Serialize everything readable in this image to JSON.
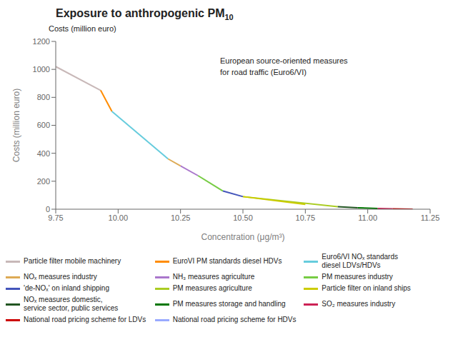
{
  "chart_data": {
    "type": "line",
    "title": "Exposure to anthropogenic PM",
    "subtitle": "10",
    "xlabel": "Concentration (μg/m³)",
    "ylabel": "Costs (million euro)",
    "annotations": [
      "Costs (million euro)",
      "European source-oriented measures\nfor road traffic (Euro6/VI)"
    ],
    "xlim": [
      9.75,
      11.25
    ],
    "ylim": [
      0,
      1200
    ],
    "xticks": [
      9.75,
      {
        "value": 10.0,
        "label": "10.00"
      },
      10.25,
      {
        "value": 10.5,
        "label": "10.50"
      },
      10.75,
      {
        "value": 11.0,
        "label": "11.00"
      },
      11.25
    ],
    "yticks": [
      0,
      200,
      400,
      600,
      800,
      1000,
      1200
    ],
    "grid": false,
    "legend": "bottom",
    "series": [
      {
        "name": "Particle filter mobile machinery",
        "color": "#c8b8b8",
        "x": [
          9.75,
          9.93
        ],
        "values": [
          1020,
          850
        ]
      },
      {
        "name": "EuroVI PM standards diesel HDVs",
        "color": "#ff8c00",
        "x": [
          9.93,
          9.975
        ],
        "values": [
          850,
          700
        ]
      },
      {
        "name": "Euro6/VI NOₓ standards\ndiesel LDVs/HDVs",
        "color": "#66ccdd",
        "x": [
          9.975,
          10.2
        ],
        "values": [
          700,
          360
        ]
      },
      {
        "name": "NOₓ measures industry",
        "color": "#ddaa55",
        "x": [
          10.2,
          10.25
        ],
        "values": [
          360,
          310
        ]
      },
      {
        "name": "NH₃ measures agriculture",
        "color": "#aa77cc",
        "x": [
          10.25,
          10.32
        ],
        "values": [
          310,
          240
        ]
      },
      {
        "name": "PM measures industry",
        "color": "#77cc44",
        "x": [
          10.32,
          10.42
        ],
        "values": [
          240,
          130
        ]
      },
      {
        "name": "'de-NOₓ' on inland shipping",
        "color": "#4455bb",
        "x": [
          10.42,
          10.5
        ],
        "values": [
          130,
          90
        ]
      },
      {
        "name": "PM measures agriculture",
        "color": "#aacc22",
        "x": [
          10.5,
          10.88
        ],
        "values": [
          90,
          18
        ]
      },
      {
        "name": "Particle filter on inland ships",
        "color": "#cccc00",
        "x": [
          10.5,
          10.75
        ],
        "values": [
          90,
          35
        ]
      },
      {
        "name": "NOₓ measures domestic,\nservice sector, public services",
        "color": "#225522",
        "x": [
          10.88,
          10.96
        ],
        "values": [
          18,
          10
        ]
      },
      {
        "name": "PM measures storage and handling",
        "color": "#007700",
        "x": [
          10.96,
          11.04
        ],
        "values": [
          10,
          5
        ]
      },
      {
        "name": "SO₂ measures industry",
        "color": "#cc2255",
        "x": [
          11.04,
          11.1
        ],
        "values": [
          5,
          2
        ]
      },
      {
        "name": "National road pricing scheme for LDVs",
        "color": "#cc0000",
        "x": [
          11.1,
          11.18
        ],
        "values": [
          2,
          0
        ]
      },
      {
        "name": "National road pricing scheme for HDVs",
        "color": "#99aaff",
        "x": [
          9.975,
          9.975
        ],
        "values": [
          700,
          700
        ]
      }
    ]
  }
}
